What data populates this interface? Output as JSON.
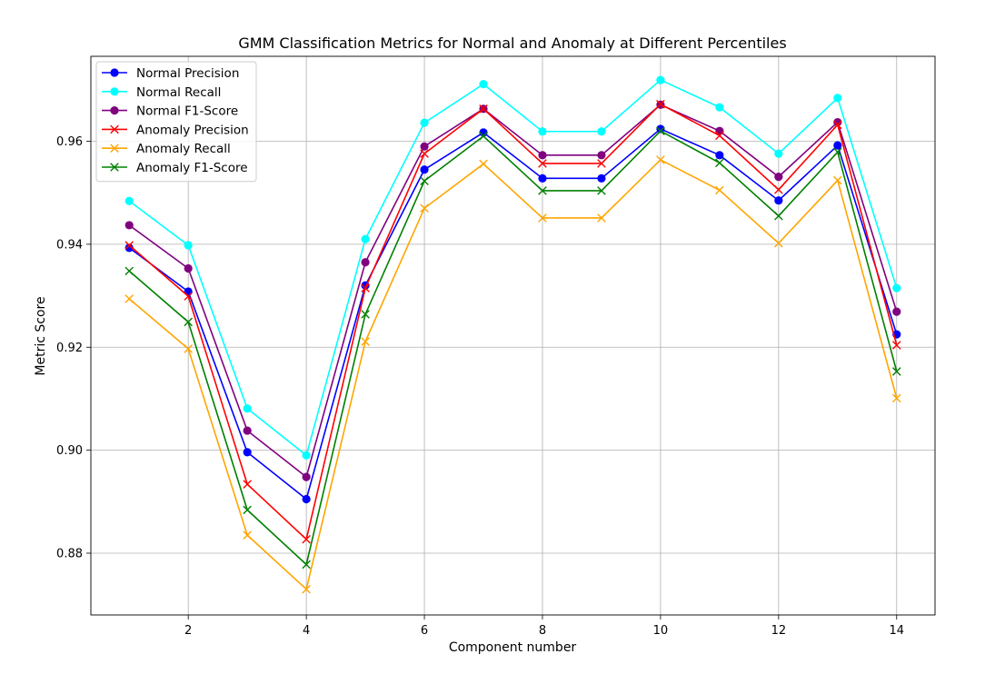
{
  "chart_data": {
    "type": "line",
    "title": "GMM Classification Metrics for Normal and Anomaly at Different Percentiles",
    "xlabel": "Component number",
    "ylabel": "Metric Score",
    "xlim": [
      0.35,
      14.65
    ],
    "ylim": [
      0.868,
      0.9765
    ],
    "x_ticks": [
      2,
      4,
      6,
      8,
      10,
      12,
      14
    ],
    "x_tick_labels": [
      "2",
      "4",
      "6",
      "8",
      "10",
      "12",
      "14"
    ],
    "y_ticks": [
      0.88,
      0.9,
      0.92,
      0.94,
      0.96
    ],
    "y_tick_labels": [
      "0.88",
      "0.90",
      "0.92",
      "0.94",
      "0.96"
    ],
    "grid": true,
    "legend_position": "upper-left",
    "x": [
      1,
      2,
      3,
      4,
      5,
      6,
      7,
      8,
      9,
      10,
      11,
      12,
      13,
      14
    ],
    "series": [
      {
        "name": "Normal Precision",
        "color": "#0000ff",
        "marker": "circle",
        "values": [
          0.9393,
          0.9308,
          0.8996,
          0.8905,
          0.932,
          0.9545,
          0.9617,
          0.9528,
          0.9528,
          0.9624,
          0.9573,
          0.9485,
          0.9592,
          0.9225
        ]
      },
      {
        "name": "Normal Recall",
        "color": "#00ffff",
        "marker": "circle",
        "values": [
          0.9484,
          0.9398,
          0.9081,
          0.899,
          0.941,
          0.9636,
          0.9711,
          0.9619,
          0.9619,
          0.9719,
          0.9666,
          0.9576,
          0.9684,
          0.9315
        ]
      },
      {
        "name": "Normal F1-Score",
        "color": "#800080",
        "marker": "circle",
        "values": [
          0.9437,
          0.9353,
          0.9038,
          0.8948,
          0.9365,
          0.959,
          0.9663,
          0.9573,
          0.9573,
          0.9671,
          0.962,
          0.9531,
          0.9637,
          0.9269
        ]
      },
      {
        "name": "Anomaly Precision",
        "color": "#ff0000",
        "marker": "x",
        "values": [
          0.9398,
          0.9299,
          0.8934,
          0.8827,
          0.9315,
          0.9576,
          0.9663,
          0.9557,
          0.9557,
          0.9672,
          0.9611,
          0.9506,
          0.9632,
          0.9204
        ]
      },
      {
        "name": "Anomaly Recall",
        "color": "#ffa500",
        "marker": "x",
        "values": [
          0.9294,
          0.9197,
          0.8835,
          0.873,
          0.9211,
          0.947,
          0.9556,
          0.9451,
          0.9451,
          0.9564,
          0.9505,
          0.9402,
          0.9524,
          0.9101
        ]
      },
      {
        "name": "Anomaly F1-Score",
        "color": "#008000",
        "marker": "x",
        "values": [
          0.9348,
          0.9249,
          0.8884,
          0.8778,
          0.9264,
          0.9523,
          0.961,
          0.9504,
          0.9504,
          0.962,
          0.9558,
          0.9455,
          0.9579,
          0.9153
        ]
      }
    ]
  }
}
